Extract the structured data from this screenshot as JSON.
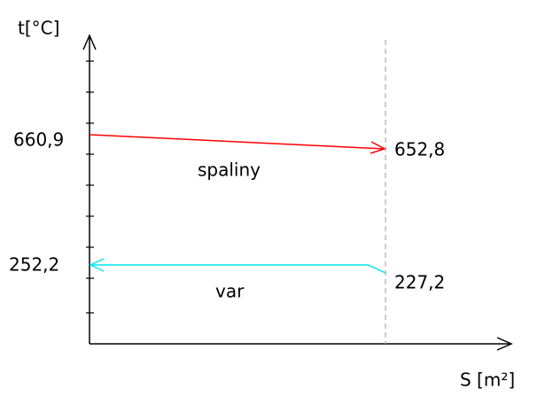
{
  "axis_labels": {
    "y": "t[°C]",
    "x": "S [m²]"
  },
  "streams": [
    {
      "name": "spaliny",
      "t_left": "660,9",
      "t_right": "652,8"
    },
    {
      "name": "var",
      "t_left": "252,2",
      "t_right": "227,2"
    }
  ]
}
